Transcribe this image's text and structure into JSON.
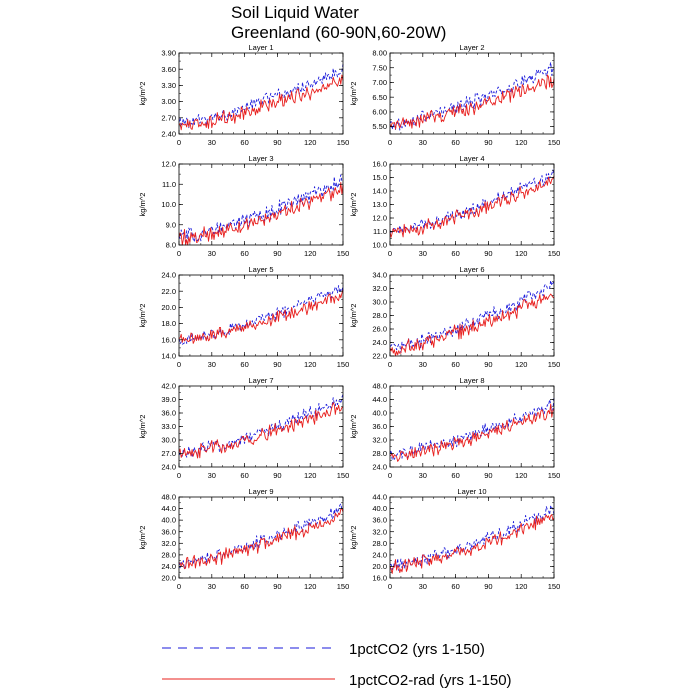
{
  "title_line1": "Soil Liquid Water",
  "title_line2": "Greenland (60-90N,60-20W)",
  "legend": [
    {
      "label": "1pctCO2 (yrs 1-150)",
      "color": "#1a1adb",
      "dash": true
    },
    {
      "label": "1pctCO2-rad (yrs 1-150)",
      "color": "#e8201e",
      "dash": false
    }
  ],
  "chart_data": [
    {
      "type": "line",
      "title": "Layer 1",
      "ylabel": "kg/m^2",
      "xlim": [
        0,
        150
      ],
      "ylim": [
        2.4,
        3.9
      ],
      "xticks": [
        0,
        30,
        60,
        90,
        120,
        150
      ],
      "xtick_labels": [
        "0",
        "30",
        "60",
        "90",
        "120",
        "150"
      ],
      "yticks": [
        2.4,
        2.7,
        3.0,
        3.3,
        3.6,
        3.9
      ],
      "ytick_labels": [
        "2.40",
        "2.70",
        "3.00",
        "3.30",
        "3.60",
        "3.90"
      ],
      "series": [
        {
          "x": [
            0,
            150
          ],
          "values": [
            2.6,
            3.6
          ],
          "noise": 0.09,
          "color": "#1a1adb",
          "dash": true
        },
        {
          "x": [
            0,
            150
          ],
          "values": [
            2.55,
            3.4
          ],
          "noise": 0.1,
          "color": "#e8201e",
          "dash": false
        }
      ]
    },
    {
      "type": "line",
      "title": "Layer 2",
      "ylabel": "kg/m^2",
      "xlim": [
        0,
        150
      ],
      "ylim": [
        5.25,
        8.0
      ],
      "xticks": [
        0,
        30,
        60,
        90,
        120,
        150
      ],
      "xtick_labels": [
        "0",
        "30",
        "60",
        "90",
        "120",
        "150"
      ],
      "yticks": [
        5.5,
        6.0,
        6.5,
        7.0,
        7.5,
        8.0
      ],
      "ytick_labels": [
        "5.50",
        "6.00",
        "6.50",
        "7.00",
        "7.50",
        "8.00"
      ],
      "series": [
        {
          "x": [
            0,
            150
          ],
          "values": [
            5.6,
            7.5
          ],
          "noise": 0.17,
          "color": "#1a1adb",
          "dash": true
        },
        {
          "x": [
            0,
            150
          ],
          "values": [
            5.55,
            7.1
          ],
          "noise": 0.18,
          "color": "#e8201e",
          "dash": false
        }
      ]
    },
    {
      "type": "line",
      "title": "Layer 3",
      "ylabel": "kg/m^2",
      "xlim": [
        0,
        150
      ],
      "ylim": [
        8.0,
        12.0
      ],
      "xticks": [
        0,
        30,
        60,
        90,
        120,
        150
      ],
      "xtick_labels": [
        "0",
        "30",
        "60",
        "90",
        "120",
        "150"
      ],
      "yticks": [
        8.0,
        9.0,
        10.0,
        11.0,
        12.0
      ],
      "ytick_labels": [
        "8.0",
        "9.0",
        "10.0",
        "11.0",
        "12.0"
      ],
      "series": [
        {
          "x": [
            0,
            150
          ],
          "values": [
            8.4,
            11.2
          ],
          "noise": 0.28,
          "color": "#1a1adb",
          "dash": true
        },
        {
          "x": [
            0,
            150
          ],
          "values": [
            8.3,
            10.8
          ],
          "noise": 0.3,
          "color": "#e8201e",
          "dash": false
        }
      ]
    },
    {
      "type": "line",
      "title": "Layer 4",
      "ylabel": "kg/m^2",
      "xlim": [
        0,
        150
      ],
      "ylim": [
        10.0,
        16.0
      ],
      "xticks": [
        0,
        30,
        60,
        90,
        120,
        150
      ],
      "xtick_labels": [
        "0",
        "30",
        "60",
        "90",
        "120",
        "150"
      ],
      "yticks": [
        10.0,
        11.0,
        12.0,
        13.0,
        14.0,
        15.0,
        16.0
      ],
      "ytick_labels": [
        "10.0",
        "11.0",
        "12.0",
        "13.0",
        "14.0",
        "15.0",
        "16.0"
      ],
      "series": [
        {
          "x": [
            0,
            150
          ],
          "values": [
            11.0,
            15.2
          ],
          "noise": 0.35,
          "color": "#1a1adb",
          "dash": true
        },
        {
          "x": [
            0,
            150
          ],
          "values": [
            10.9,
            14.8
          ],
          "noise": 0.37,
          "color": "#e8201e",
          "dash": false
        }
      ]
    },
    {
      "type": "line",
      "title": "Layer 5",
      "ylabel": "kg/m^2",
      "xlim": [
        0,
        150
      ],
      "ylim": [
        14.0,
        24.0
      ],
      "xticks": [
        0,
        30,
        60,
        90,
        120,
        150
      ],
      "xtick_labels": [
        "0",
        "30",
        "60",
        "90",
        "120",
        "150"
      ],
      "yticks": [
        14.0,
        16.0,
        18.0,
        20.0,
        22.0,
        24.0
      ],
      "ytick_labels": [
        "14.0",
        "16.0",
        "18.0",
        "20.0",
        "22.0",
        "24.0"
      ],
      "series": [
        {
          "x": [
            0,
            150
          ],
          "values": [
            16.0,
            22.5
          ],
          "noise": 0.55,
          "color": "#1a1adb",
          "dash": true
        },
        {
          "x": [
            0,
            150
          ],
          "values": [
            16.0,
            21.5
          ],
          "noise": 0.6,
          "color": "#e8201e",
          "dash": false
        }
      ]
    },
    {
      "type": "line",
      "title": "Layer 6",
      "ylabel": "kg/m^2",
      "xlim": [
        0,
        150
      ],
      "ylim": [
        22.0,
        34.0
      ],
      "xticks": [
        0,
        30,
        60,
        90,
        120,
        150
      ],
      "xtick_labels": [
        "0",
        "30",
        "60",
        "90",
        "120",
        "150"
      ],
      "yticks": [
        22.0,
        24.0,
        26.0,
        28.0,
        30.0,
        32.0,
        34.0
      ],
      "ytick_labels": [
        "22.0",
        "24.0",
        "26.0",
        "28.0",
        "30.0",
        "32.0",
        "34.0"
      ],
      "series": [
        {
          "x": [
            0,
            150
          ],
          "values": [
            23.2,
            32.5
          ],
          "noise": 0.8,
          "color": "#1a1adb",
          "dash": true
        },
        {
          "x": [
            0,
            150
          ],
          "values": [
            23.0,
            31.0
          ],
          "noise": 0.85,
          "color": "#e8201e",
          "dash": false
        }
      ]
    },
    {
      "type": "line",
      "title": "Layer 7",
      "ylabel": "kg/m^2",
      "xlim": [
        0,
        150
      ],
      "ylim": [
        24.0,
        42.0
      ],
      "xticks": [
        0,
        30,
        60,
        90,
        120,
        150
      ],
      "xtick_labels": [
        "0",
        "30",
        "60",
        "90",
        "120",
        "150"
      ],
      "yticks": [
        24.0,
        27.0,
        30.0,
        33.0,
        36.0,
        39.0,
        42.0
      ],
      "ytick_labels": [
        "24.0",
        "27.0",
        "30.0",
        "33.0",
        "36.0",
        "39.0",
        "42.0"
      ],
      "series": [
        {
          "x": [
            0,
            150
          ],
          "values": [
            27.0,
            39.0
          ],
          "noise": 1.1,
          "color": "#1a1adb",
          "dash": true
        },
        {
          "x": [
            0,
            150
          ],
          "values": [
            26.8,
            37.5
          ],
          "noise": 1.2,
          "color": "#e8201e",
          "dash": false
        }
      ]
    },
    {
      "type": "line",
      "title": "Layer 8",
      "ylabel": "kg/m^2",
      "xlim": [
        0,
        150
      ],
      "ylim": [
        24.0,
        48.0
      ],
      "xticks": [
        0,
        30,
        60,
        90,
        120,
        150
      ],
      "xtick_labels": [
        "0",
        "30",
        "60",
        "90",
        "120",
        "150"
      ],
      "yticks": [
        24.0,
        28.0,
        32.0,
        36.0,
        40.0,
        44.0,
        48.0
      ],
      "ytick_labels": [
        "24.0",
        "28.0",
        "32.0",
        "36.0",
        "40.0",
        "44.0",
        "48.0"
      ],
      "series": [
        {
          "x": [
            0,
            150
          ],
          "values": [
            27.5,
            43.0
          ],
          "noise": 1.4,
          "color": "#1a1adb",
          "dash": true
        },
        {
          "x": [
            0,
            150
          ],
          "values": [
            27.0,
            41.0
          ],
          "noise": 1.5,
          "color": "#e8201e",
          "dash": false
        }
      ]
    },
    {
      "type": "line",
      "title": "Layer 9",
      "ylabel": "kg/m^2",
      "xlim": [
        0,
        150
      ],
      "ylim": [
        20.0,
        48.0
      ],
      "xticks": [
        0,
        30,
        60,
        90,
        120,
        150
      ],
      "xtick_labels": [
        "0",
        "30",
        "60",
        "90",
        "120",
        "150"
      ],
      "yticks": [
        20.0,
        24.0,
        28.0,
        32.0,
        36.0,
        40.0,
        44.0,
        48.0
      ],
      "ytick_labels": [
        "20.0",
        "24.0",
        "28.0",
        "32.0",
        "36.0",
        "40.0",
        "44.0",
        "48.0"
      ],
      "series": [
        {
          "x": [
            0,
            150
          ],
          "values": [
            25.0,
            44.0
          ],
          "noise": 1.7,
          "color": "#1a1adb",
          "dash": true
        },
        {
          "x": [
            0,
            150
          ],
          "values": [
            24.5,
            42.0
          ],
          "noise": 1.8,
          "color": "#e8201e",
          "dash": false
        }
      ]
    },
    {
      "type": "line",
      "title": "Layer 10",
      "ylabel": "kg/m^2",
      "xlim": [
        0,
        150
      ],
      "ylim": [
        16.0,
        44.0
      ],
      "xticks": [
        0,
        30,
        60,
        90,
        120,
        150
      ],
      "xtick_labels": [
        "0",
        "30",
        "60",
        "90",
        "120",
        "150"
      ],
      "yticks": [
        16.0,
        20.0,
        24.0,
        28.0,
        32.0,
        36.0,
        40.0,
        44.0
      ],
      "ytick_labels": [
        "16.0",
        "20.0",
        "24.0",
        "28.0",
        "32.0",
        "36.0",
        "40.0",
        "44.0"
      ],
      "series": [
        {
          "x": [
            0,
            150
          ],
          "values": [
            20.0,
            40.0
          ],
          "noise": 1.7,
          "color": "#1a1adb",
          "dash": true
        },
        {
          "x": [
            0,
            150
          ],
          "values": [
            19.5,
            37.5
          ],
          "noise": 1.8,
          "color": "#e8201e",
          "dash": false
        }
      ]
    }
  ]
}
